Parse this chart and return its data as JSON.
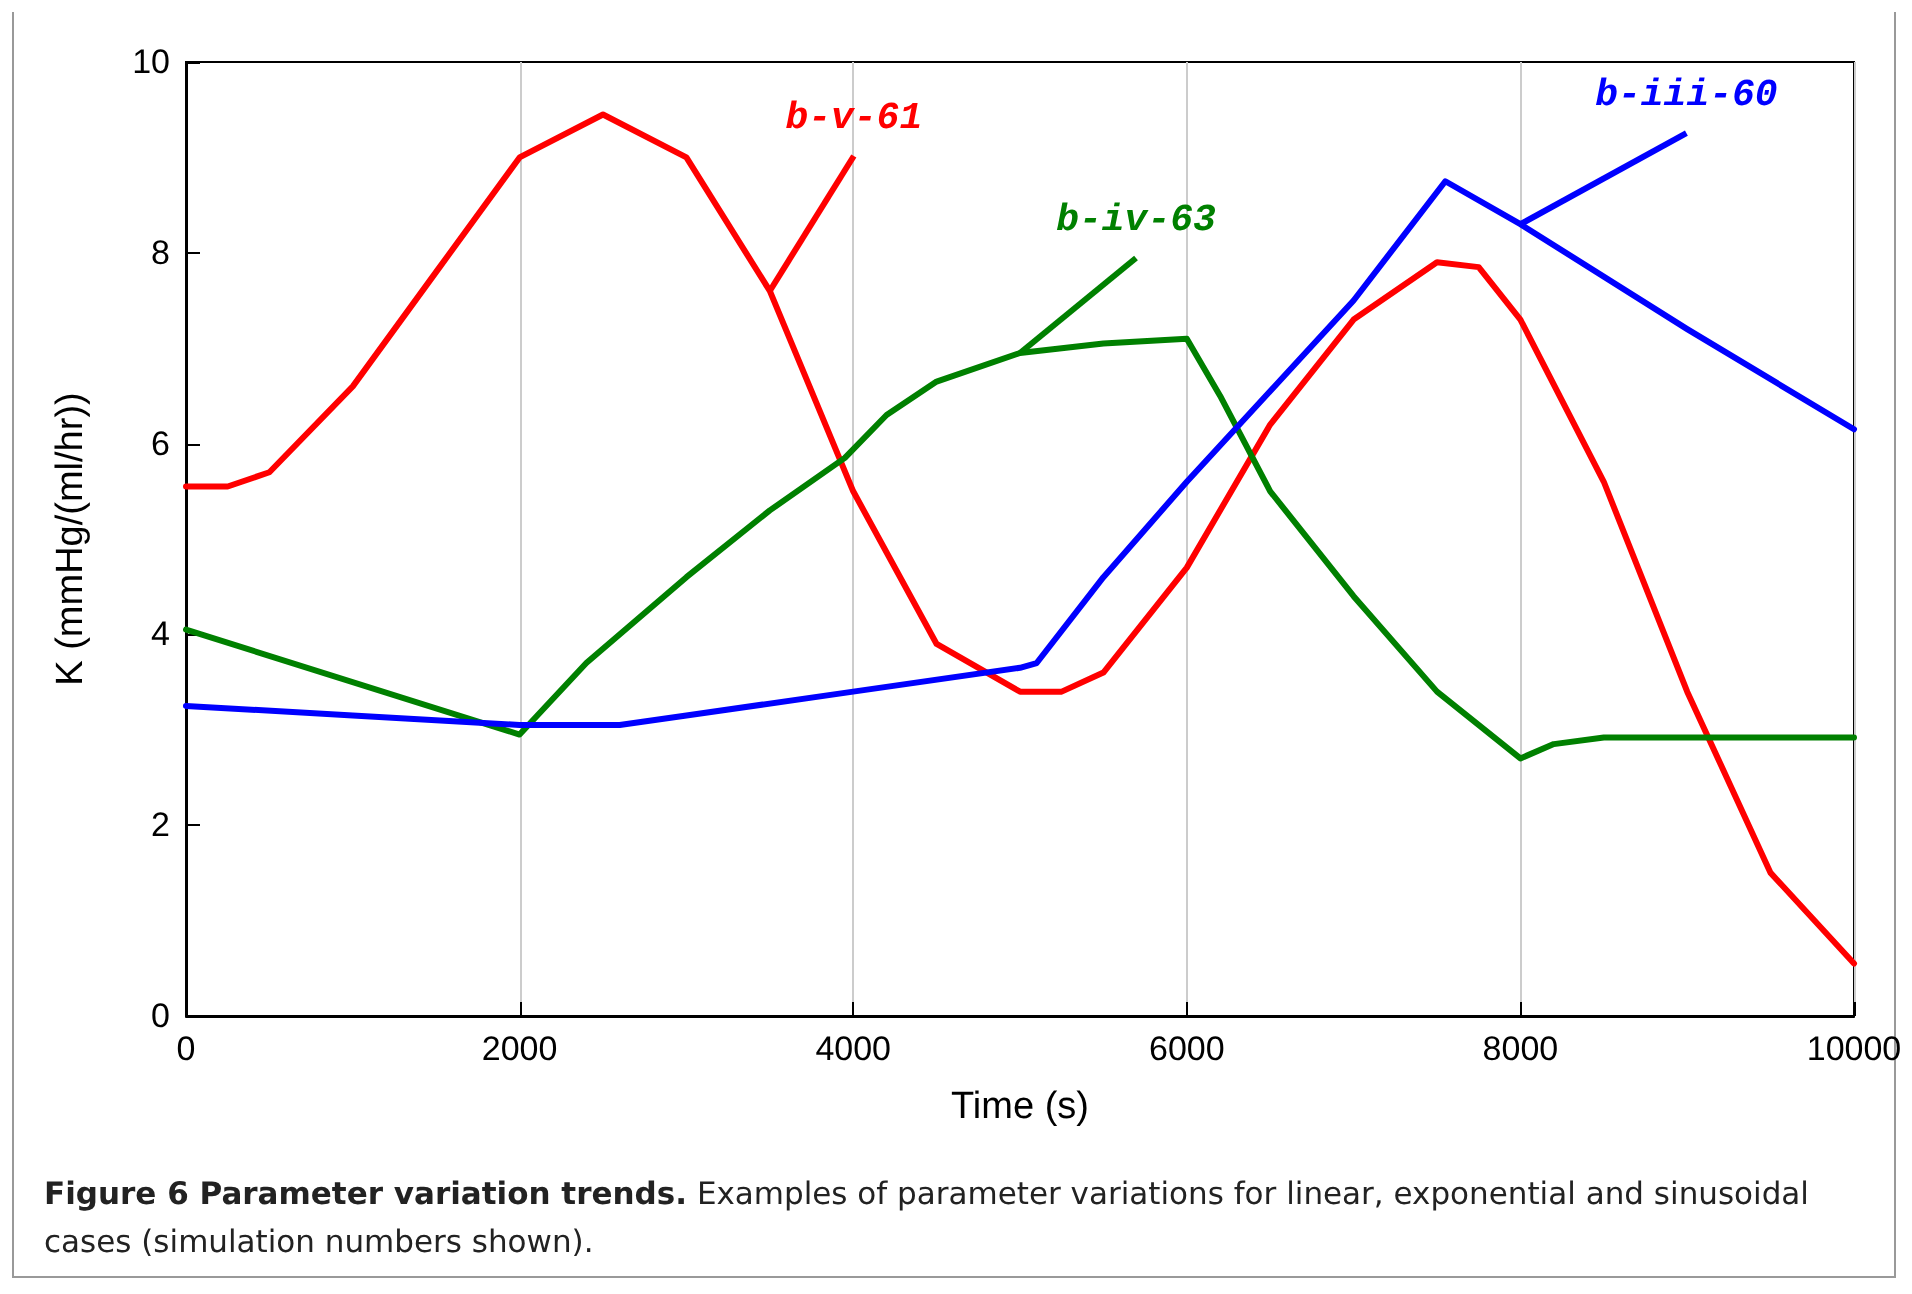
{
  "chart_data": {
    "type": "line",
    "title": "Figure 6 Parameter variation trends.",
    "annotations": [
      "Examples of parameter variations for linear, exponential and sinusoidal cases (simulation numbers shown)."
    ],
    "xlabel": "Time (s)",
    "ylabel": "K (mmHg/(ml/hr))",
    "xlim": [
      0,
      10000
    ],
    "xticks": [
      0,
      2000,
      4000,
      6000,
      8000,
      10000
    ],
    "ylim": [
      0,
      10
    ],
    "yticks": [
      0,
      2,
      4,
      6,
      8,
      10
    ],
    "grid": "x",
    "legend": false,
    "marker": "none",
    "line_style": "solid",
    "series": [
      {
        "name": "b-v-61",
        "color": "#ff0000",
        "x": [
          0,
          250,
          500,
          1000,
          1500,
          2000,
          2500,
          3000,
          3500,
          4000,
          4500,
          5000,
          5250,
          5500,
          6000,
          6500,
          7000,
          7500,
          7750,
          8000,
          8500,
          9000,
          9500,
          10000
        ],
        "values": [
          5.55,
          5.55,
          5.7,
          6.6,
          7.8,
          9.0,
          9.45,
          9.0,
          7.6,
          5.5,
          3.9,
          3.4,
          3.4,
          3.6,
          4.7,
          6.2,
          7.3,
          7.9,
          7.85,
          7.3,
          5.6,
          3.4,
          1.5,
          0.55
        ]
      },
      {
        "name": "b-iv-63",
        "color": "#008000",
        "x": [
          0,
          2000,
          2400,
          3000,
          3500,
          3950,
          4200,
          4500,
          5000,
          5500,
          6000,
          6200,
          6500,
          7000,
          7500,
          8000,
          8200,
          8500,
          10000
        ],
        "values": [
          4.05,
          2.95,
          3.7,
          4.6,
          5.3,
          5.85,
          6.3,
          6.65,
          6.95,
          7.05,
          7.1,
          6.5,
          5.5,
          4.4,
          3.4,
          2.7,
          2.85,
          2.92,
          2.92
        ]
      },
      {
        "name": "b-iii-60",
        "color": "#0000ff",
        "x": [
          0,
          1000,
          2000,
          2600,
          3000,
          4000,
          5000,
          5100,
          5500,
          6000,
          7000,
          7550,
          8000,
          9000,
          10000
        ],
        "values": [
          3.25,
          3.15,
          3.05,
          3.05,
          3.15,
          3.4,
          3.65,
          3.7,
          4.6,
          5.6,
          7.5,
          8.75,
          8.3,
          7.2,
          6.15
        ]
      }
    ]
  }
}
